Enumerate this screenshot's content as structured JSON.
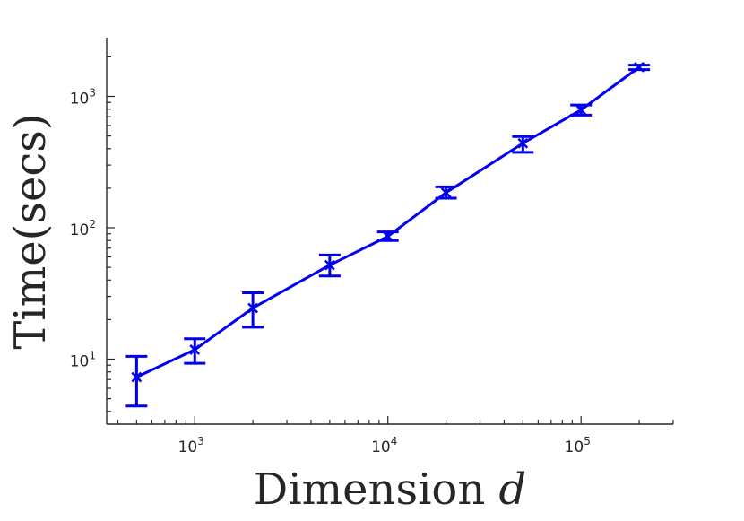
{
  "chart_data": {
    "type": "line",
    "xlabel": "Dimension",
    "xlabel_var": "d",
    "ylabel": "Time(secs)",
    "xscale": "log",
    "yscale": "log",
    "xlim": [
      350,
      300000
    ],
    "ylim": [
      3.2,
      2800
    ],
    "grid": false,
    "legend": "none",
    "x_ticks": [
      {
        "base": "10",
        "exp": "3",
        "value": 1000
      },
      {
        "base": "10",
        "exp": "4",
        "value": 10000
      },
      {
        "base": "10",
        "exp": "5",
        "value": 100000
      }
    ],
    "y_ticks": [
      {
        "base": "10",
        "exp": "1",
        "value": 10
      },
      {
        "base": "10",
        "exp": "2",
        "value": 100
      },
      {
        "base": "10",
        "exp": "3",
        "value": 1000
      }
    ],
    "series": [
      {
        "color": "#0000ee",
        "marker": "x",
        "x": [
          500,
          1000,
          2000,
          5000,
          10000,
          20000,
          50000,
          100000,
          200000
        ],
        "y": [
          7.3,
          11.8,
          24.5,
          52,
          86,
          185,
          440,
          790,
          1670
        ],
        "lower": [
          4.4,
          9.3,
          17.5,
          43,
          80,
          168,
          375,
          720,
          1600
        ],
        "upper": [
          10.5,
          14.3,
          32,
          62,
          93,
          205,
          495,
          860,
          1730
        ]
      }
    ]
  }
}
